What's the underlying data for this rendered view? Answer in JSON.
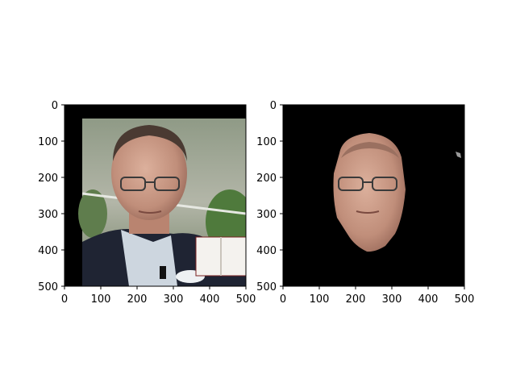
{
  "figure": {
    "panels": [
      {
        "id": "original",
        "x_ticks": [
          "0",
          "100",
          "200",
          "300",
          "400",
          "500"
        ],
        "y_ticks": [
          "0",
          "100",
          "200",
          "300",
          "400",
          "500"
        ],
        "content": "photo-of-man-with-glasses-in-suit"
      },
      {
        "id": "face-mask",
        "x_ticks": [
          "0",
          "100",
          "200",
          "300",
          "400",
          "500"
        ],
        "y_ticks": [
          "0",
          "100",
          "200",
          "300",
          "400",
          "500"
        ],
        "content": "segmented-face-on-black-background"
      }
    ],
    "colors": {
      "black": "#000000",
      "skin": "#c89a86",
      "suit": "#1f2433",
      "shirt": "#cdd6df",
      "foliage": "#4f7a3c",
      "background_blur": "#a6a89b"
    }
  }
}
